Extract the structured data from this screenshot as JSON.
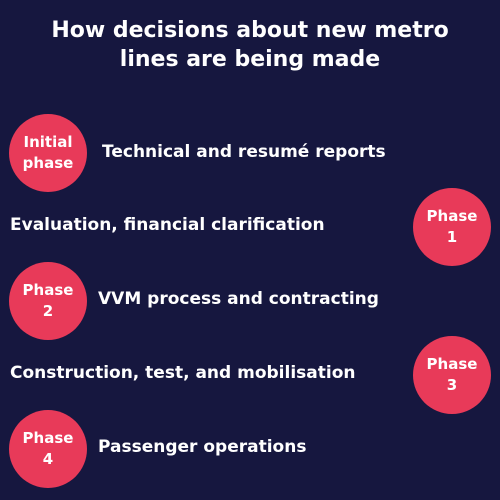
{
  "title": {
    "line1": "How decisions about new metro",
    "line2": "lines are being made"
  },
  "accent_color": "#e83a59",
  "background_color": "#16173f",
  "steps": [
    {
      "badge_line1": "Initial",
      "badge_line2": "phase",
      "text": "Technical and resumé reports"
    },
    {
      "badge_line1": "Phase",
      "badge_line2": "1",
      "text": "Evaluation, financial clarification"
    },
    {
      "badge_line1": "Phase",
      "badge_line2": "2",
      "text": "VVM process and contracting"
    },
    {
      "badge_line1": "Phase",
      "badge_line2": "3",
      "text": "Construction, test, and mobilisation"
    },
    {
      "badge_line1": "Phase",
      "badge_line2": "4",
      "text": "Passenger operations"
    }
  ]
}
